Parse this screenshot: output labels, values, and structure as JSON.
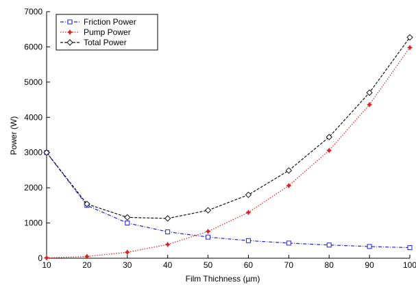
{
  "chart_data": {
    "type": "line",
    "title": "",
    "xlabel": "Film Thichness (µm)",
    "ylabel": "Power (W)",
    "xlim": [
      10,
      100
    ],
    "ylim": [
      0,
      7000
    ],
    "x": [
      10,
      20,
      30,
      40,
      50,
      60,
      70,
      80,
      90,
      100
    ],
    "xticks": [
      "10",
      "20",
      "30",
      "40",
      "50",
      "60",
      "70",
      "80",
      "90",
      "100"
    ],
    "yticks": [
      "0",
      "1000",
      "2000",
      "3000",
      "4000",
      "5000",
      "6000",
      "7000"
    ],
    "grid": false,
    "legend_position": "top-left",
    "series": [
      {
        "name": "Friction Power",
        "color": "#1f1fe0",
        "line": "dash-dot",
        "marker": "square",
        "values": [
          3000,
          1500,
          1000,
          750,
          600,
          500,
          430,
          375,
          333,
          300
        ]
      },
      {
        "name": "Pump Power",
        "color": "#e02020",
        "line": "dotted",
        "marker": "star",
        "values": [
          10,
          50,
          170,
          390,
          760,
          1300,
          2060,
          3060,
          4360,
          5980
        ]
      },
      {
        "name": "Total Power",
        "color": "#111111",
        "line": "dashed",
        "marker": "diamond",
        "values": [
          3000,
          1540,
          1160,
          1130,
          1360,
          1800,
          2490,
          3440,
          4700,
          6270
        ]
      }
    ]
  }
}
